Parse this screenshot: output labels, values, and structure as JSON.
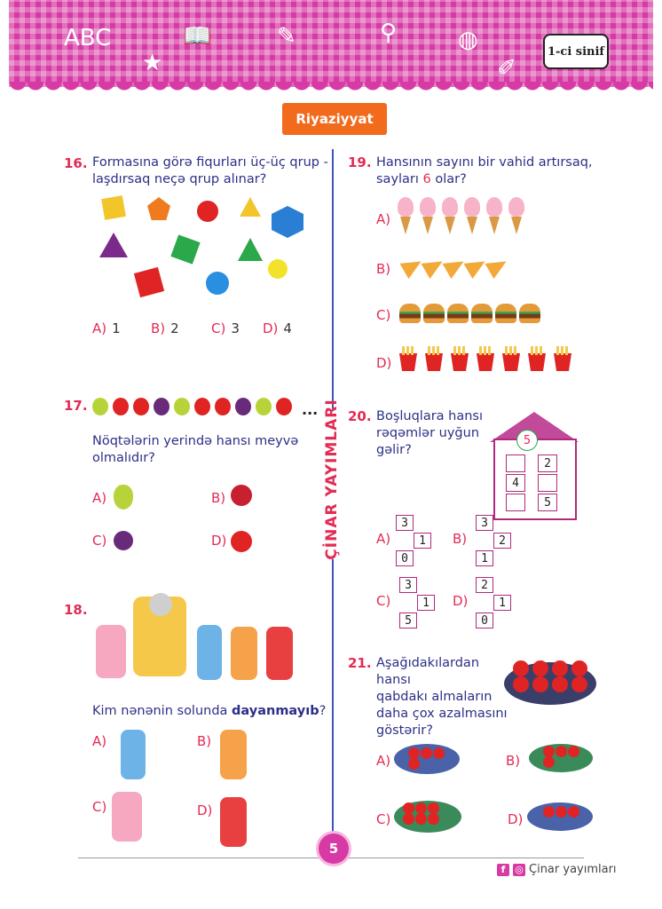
{
  "header": {
    "grade": "1-ci sinif",
    "subject": "Riyaziyyat"
  },
  "brand": "ÇİNAR YAYIMLARI",
  "q16": {
    "num": "16.",
    "text1": "Formasına görə fiqurları üç-üç qrup -",
    "text2": "laşdırsaq neçə qrup alınar?",
    "options": [
      {
        "l": "A)",
        "v": "1"
      },
      {
        "l": "B)",
        "v": "2"
      },
      {
        "l": "C)",
        "v": "3"
      },
      {
        "l": "D)",
        "v": "4"
      }
    ]
  },
  "q17": {
    "num": "17.",
    "text1": "Nöqtələrin yerində hansı meyvə",
    "text2": "olmalıdır?",
    "dots": "...",
    "options": [
      "A)",
      "B)",
      "C)",
      "D)"
    ]
  },
  "q18": {
    "num": "18.",
    "text_pre": "Kim nənənin solunda ",
    "text_bold": "dayanmayıb",
    "text_post": "?",
    "options": [
      "A)",
      "B)",
      "C)",
      "D)"
    ]
  },
  "q19": {
    "num": "19.",
    "text1": "Hansının sayını bir vahid artırsaq,",
    "text2_pre": "sayları ",
    "text2_num": "6",
    "text2_post": " olar?",
    "options": [
      "A)",
      "B)",
      "C)",
      "D)"
    ]
  },
  "q20": {
    "num": "20.",
    "text1": "Boşluqlara hansı",
    "text2": "rəqəmlər uyğun",
    "text3": "gəlir?",
    "house": {
      "roof": "5",
      "cells": [
        "2",
        "4",
        "5"
      ]
    },
    "options": [
      {
        "l": "A)",
        "top": "3",
        "mid": "1",
        "bot": "0"
      },
      {
        "l": "B)",
        "top": "3",
        "mid": "2",
        "bot": "1"
      },
      {
        "l": "C)",
        "top": "3",
        "mid": "1",
        "bot": "5"
      },
      {
        "l": "D)",
        "top": "2",
        "mid": "1",
        "bot": "0"
      }
    ]
  },
  "q21": {
    "num": "21.",
    "text1": "Aşağıdakılardan hansı",
    "text2": "qabdakı almaların",
    "text3": "daha çox azalmasını",
    "text4": "göstərir?",
    "options": [
      "A)",
      "B)",
      "C)",
      "D)"
    ]
  },
  "page_number": "5",
  "footer": {
    "text": "Çinar yayımları",
    "fb": "f",
    "ig": "◎"
  },
  "colors": {
    "pink": "#d73aa4",
    "red": "#e32b54",
    "navy": "#2c2f86",
    "orange": "#f26a1c"
  }
}
